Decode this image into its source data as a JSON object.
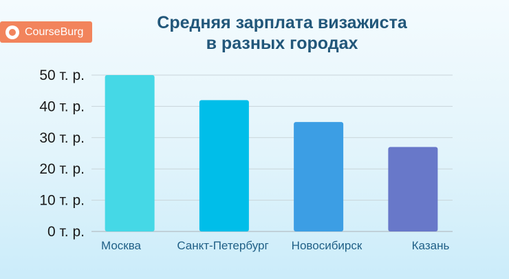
{
  "brand": {
    "name": "CourseBurg",
    "icon": "courseburg-logo-icon",
    "color": "#f2845c"
  },
  "chart_data": {
    "type": "bar",
    "title": [
      "Средняя зарплата визажиста",
      "в разных городах"
    ],
    "categories": [
      "Москва",
      "Санкт-Петербург",
      "Новосибирск",
      "Казань"
    ],
    "values": [
      50,
      42,
      35,
      27
    ],
    "unit_suffix": " т. р.",
    "ylim": [
      0,
      50
    ],
    "yticks": [
      0,
      10,
      20,
      30,
      40,
      50
    ],
    "ytick_labels": [
      "0 т. р.",
      "10 т. р.",
      "20 т. р.",
      "30 т. р.",
      "40 т. р.",
      "50 т. р."
    ],
    "bar_colors": [
      "#45d8e6",
      "#00bee9",
      "#3c9ee4",
      "#6878c9"
    ],
    "grid": true,
    "legend": "none"
  }
}
